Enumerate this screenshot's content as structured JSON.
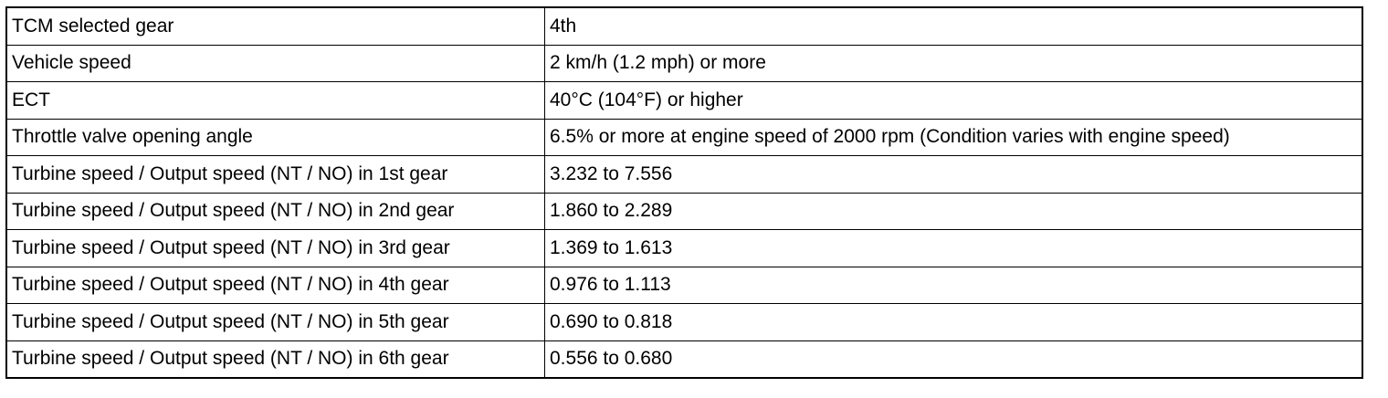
{
  "table": {
    "rows": [
      [
        "TCM selected gear",
        "4th"
      ],
      [
        "Vehicle speed",
        "2 km/h (1.2 mph) or more"
      ],
      [
        "ECT",
        "40°C (104°F) or higher"
      ],
      [
        "Throttle valve opening angle",
        "6.5% or more at engine speed of 2000 rpm (Condition varies with engine speed)"
      ],
      [
        "Turbine speed / Output speed (NT / NO) in 1st gear",
        "3.232 to 7.556"
      ],
      [
        "Turbine speed / Output speed (NT / NO) in 2nd gear",
        "1.860 to 2.289"
      ],
      [
        "Turbine speed / Output speed (NT / NO) in 3rd gear",
        "1.369 to 1.613"
      ],
      [
        "Turbine speed / Output speed (NT / NO) in 4th gear",
        "0.976 to 1.113"
      ],
      [
        "Turbine speed / Output speed (NT / NO) in 5th gear",
        "0.690 to 0.818"
      ],
      [
        "Turbine speed / Output speed (NT / NO) in 6th gear",
        "0.556 to 0.680"
      ]
    ]
  }
}
